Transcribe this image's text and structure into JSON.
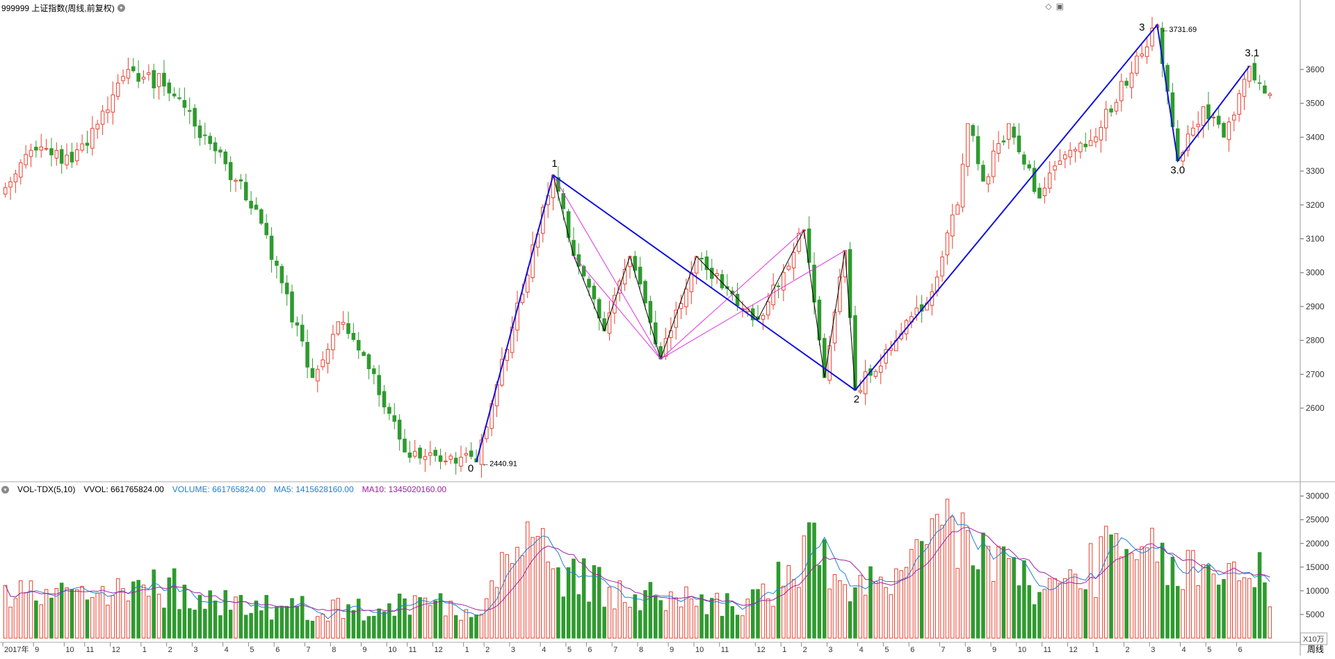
{
  "header": {
    "title": "999999 上证指数(周线,前复权)"
  },
  "volume_panel": {
    "indicator": "VOL-TDX(5,10)",
    "vvol": "VVOL: 661765824.00",
    "volume": "VOLUME: 661765824.00",
    "ma5": "MA5: 1415628160.00",
    "ma10": "MA10: 1345020160.00",
    "unit": "X10万",
    "period": "周线"
  },
  "colors": {
    "up": "#e8402e",
    "down": "#2f9a2f",
    "wave": "#1010e0",
    "ma5": "#1f7fd0",
    "ma10": "#a020a0",
    "magenta": "#e030e0"
  },
  "chart_data": [
    {
      "type": "candlestick",
      "ylim": [
        2440,
        3760
      ],
      "yticks": [
        2600,
        2700,
        2800,
        2900,
        3000,
        3100,
        3200,
        3300,
        3400,
        3500,
        3600
      ],
      "annotations": {
        "low": "2440.91",
        "high": "3731.69"
      },
      "wave_labels": [
        "0",
        "1",
        "2",
        "3",
        "3.0",
        "3.1"
      ],
      "wave_points": [
        {
          "label": "0",
          "bar": 92,
          "price": 2440.91
        },
        {
          "label": "1",
          "bar": 107,
          "price": 3288
        },
        {
          "label": "2",
          "bar": 166,
          "price": 2653
        },
        {
          "label": "3",
          "bar": 225,
          "price": 3731.69
        },
        {
          "label": "3.0",
          "bar": 229,
          "price": 3330
        },
        {
          "label": "3.1",
          "bar": 243,
          "price": 3610
        }
      ],
      "pivots": [
        {
          "bar": 30,
          "price": 3588
        },
        {
          "bar": 49,
          "price": 3187
        },
        {
          "bar": 60,
          "price": 2690
        },
        {
          "bar": 65,
          "price": 2855
        },
        {
          "bar": 70,
          "price": 2755
        },
        {
          "bar": 78,
          "price": 2470
        },
        {
          "bar": 92,
          "price": 2440.91
        },
        {
          "bar": 107,
          "price": 3288
        },
        {
          "bar": 111,
          "price": 3050
        },
        {
          "bar": 117,
          "price": 2828
        },
        {
          "bar": 122,
          "price": 3048
        },
        {
          "bar": 128,
          "price": 2745
        },
        {
          "bar": 135,
          "price": 3048
        },
        {
          "bar": 147,
          "price": 2862
        },
        {
          "bar": 156,
          "price": 3126
        },
        {
          "bar": 160,
          "price": 2690
        },
        {
          "bar": 164,
          "price": 3065
        },
        {
          "bar": 166,
          "price": 2653
        },
        {
          "bar": 174,
          "price": 2800
        },
        {
          "bar": 180,
          "price": 2910
        },
        {
          "bar": 186,
          "price": 3200
        },
        {
          "bar": 188,
          "price": 3440
        },
        {
          "bar": 191,
          "price": 3270
        },
        {
          "bar": 196,
          "price": 3440
        },
        {
          "bar": 202,
          "price": 3220
        },
        {
          "bar": 206,
          "price": 3330
        },
        {
          "bar": 212,
          "price": 3390
        },
        {
          "bar": 225,
          "price": 3731.69
        },
        {
          "bar": 229,
          "price": 3330
        },
        {
          "bar": 234,
          "price": 3490
        },
        {
          "bar": 238,
          "price": 3400
        },
        {
          "bar": 243,
          "price": 3610
        },
        {
          "bar": 246,
          "price": 3530
        }
      ],
      "x_labels": [
        {
          "text": "2017年",
          "bar": 0
        },
        {
          "text": "9",
          "bar": 6
        },
        {
          "text": "10",
          "bar": 12
        },
        {
          "text": "11",
          "bar": 16
        },
        {
          "text": "12",
          "bar": 21
        },
        {
          "text": "1",
          "bar": 27
        },
        {
          "text": "2",
          "bar": 32
        },
        {
          "text": "3",
          "bar": 37
        },
        {
          "text": "4",
          "bar": 43
        },
        {
          "text": "5",
          "bar": 48
        },
        {
          "text": "6",
          "bar": 53
        },
        {
          "text": "7",
          "bar": 59
        },
        {
          "text": "8",
          "bar": 64
        },
        {
          "text": "9",
          "bar": 70
        },
        {
          "text": "10",
          "bar": 75
        },
        {
          "text": "11",
          "bar": 79
        },
        {
          "text": "12",
          "bar": 84
        },
        {
          "text": "1",
          "bar": 90
        },
        {
          "text": "2",
          "bar": 94
        },
        {
          "text": "3",
          "bar": 99
        },
        {
          "text": "4",
          "bar": 105
        },
        {
          "text": "5",
          "bar": 110
        },
        {
          "text": "6",
          "bar": 114
        },
        {
          "text": "7",
          "bar": 119
        },
        {
          "text": "8",
          "bar": 124
        },
        {
          "text": "9",
          "bar": 130
        },
        {
          "text": "10",
          "bar": 135
        },
        {
          "text": "11",
          "bar": 140
        },
        {
          "text": "12",
          "bar": 147
        },
        {
          "text": "1",
          "bar": 152
        },
        {
          "text": "2",
          "bar": 156
        },
        {
          "text": "3",
          "bar": 161
        },
        {
          "text": "4",
          "bar": 167
        },
        {
          "text": "5",
          "bar": 172
        },
        {
          "text": "6",
          "bar": 177
        },
        {
          "text": "7",
          "bar": 183
        },
        {
          "text": "8",
          "bar": 188
        },
        {
          "text": "9",
          "bar": 193
        },
        {
          "text": "10",
          "bar": 198
        },
        {
          "text": "11",
          "bar": 203
        },
        {
          "text": "12",
          "bar": 208
        },
        {
          "text": "1",
          "bar": 213
        },
        {
          "text": "2",
          "bar": 219
        },
        {
          "text": "3",
          "bar": 224
        },
        {
          "text": "4",
          "bar": 230
        },
        {
          "text": "5",
          "bar": 235
        },
        {
          "text": "6",
          "bar": 241
        }
      ]
    },
    {
      "type": "bar",
      "title": "VOL-TDX(5,10)",
      "ylim": [
        0,
        32000
      ],
      "yticks": [
        5000,
        10000,
        15000,
        20000,
        25000,
        30000
      ],
      "unit": "X10万",
      "volume_profile": [
        {
          "bar": 0,
          "v": 9500
        },
        {
          "bar": 20,
          "v": 8500
        },
        {
          "bar": 32,
          "v": 11000
        },
        {
          "bar": 40,
          "v": 8000
        },
        {
          "bar": 55,
          "v": 6500
        },
        {
          "bar": 70,
          "v": 6000
        },
        {
          "bar": 85,
          "v": 8000
        },
        {
          "bar": 92,
          "v": 6000
        },
        {
          "bar": 97,
          "v": 14000
        },
        {
          "bar": 100,
          "v": 24000
        },
        {
          "bar": 104,
          "v": 18000
        },
        {
          "bar": 110,
          "v": 13000
        },
        {
          "bar": 120,
          "v": 9000
        },
        {
          "bar": 135,
          "v": 8000
        },
        {
          "bar": 145,
          "v": 7000
        },
        {
          "bar": 152,
          "v": 12000
        },
        {
          "bar": 158,
          "v": 18000
        },
        {
          "bar": 166,
          "v": 11000
        },
        {
          "bar": 175,
          "v": 10000
        },
        {
          "bar": 183,
          "v": 25000
        },
        {
          "bar": 188,
          "v": 20000
        },
        {
          "bar": 195,
          "v": 16000
        },
        {
          "bar": 202,
          "v": 9000
        },
        {
          "bar": 210,
          "v": 14000
        },
        {
          "bar": 216,
          "v": 17000
        },
        {
          "bar": 225,
          "v": 16000
        },
        {
          "bar": 235,
          "v": 13000
        },
        {
          "bar": 245,
          "v": 15000
        }
      ],
      "last_volume": 6617.65824,
      "ma5_last": 14156.2816,
      "ma10_last": 13450.2016
    }
  ]
}
